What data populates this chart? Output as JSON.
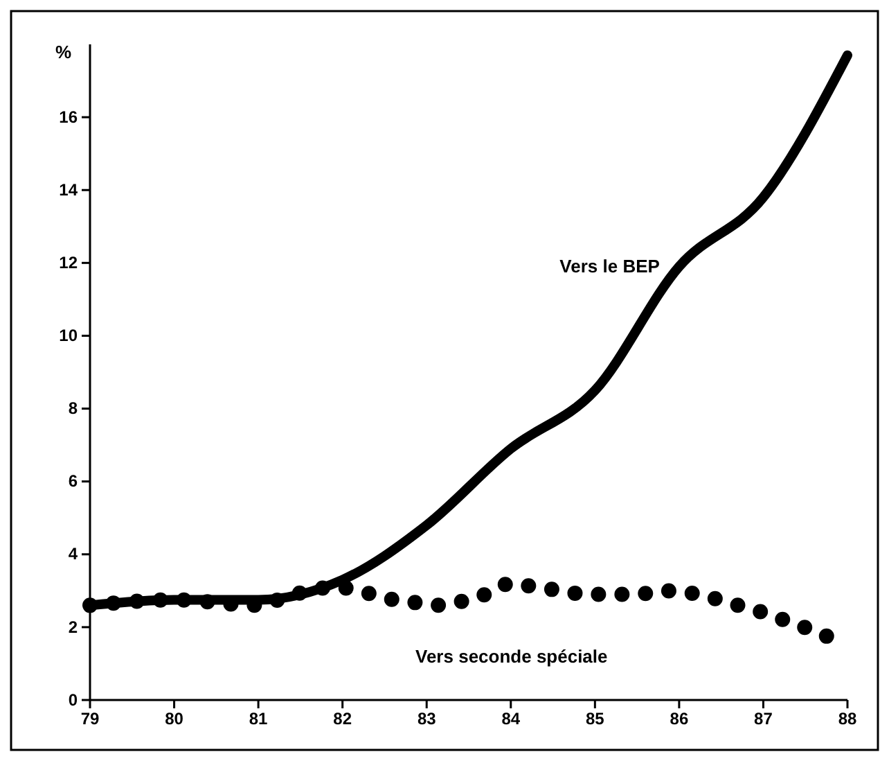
{
  "chart_data": {
    "type": "line",
    "ylabel": "%",
    "xlim": [
      79,
      88
    ],
    "xticks": [
      79,
      80,
      81,
      82,
      83,
      84,
      85,
      86,
      87,
      88
    ],
    "ylim": [
      0,
      18
    ],
    "yticks": [
      0,
      2,
      4,
      6,
      8,
      10,
      12,
      14,
      16
    ],
    "grid": false,
    "series": [
      {
        "name": "Vers seconde spéciale",
        "color": "#000000",
        "line_style": "dotted",
        "x": [
          79,
          80,
          81,
          81.3,
          81.6,
          81.9,
          82.2,
          82.5,
          82.8,
          83.1,
          83.4,
          83.7,
          84,
          84.3,
          84.6,
          84.9,
          85.2,
          85.5,
          85.8,
          86.1,
          86.4,
          86.7,
          87,
          87.3,
          87.6,
          87.9
        ],
        "values": [
          2.6,
          2.75,
          2.6,
          2.8,
          3.0,
          3.1,
          3.0,
          2.8,
          2.7,
          2.6,
          2.7,
          2.9,
          3.2,
          3.1,
          3.0,
          2.9,
          2.9,
          2.9,
          3.0,
          2.95,
          2.8,
          2.6,
          2.4,
          2.15,
          1.9,
          1.6
        ]
      },
      {
        "name": "Vers le BEP",
        "color": "#000000",
        "line_style": "solid",
        "x": [
          79,
          80,
          81,
          82,
          83,
          84,
          85,
          86,
          87,
          88
        ],
        "values": [
          2.6,
          2.75,
          2.75,
          3.3,
          4.8,
          6.9,
          8.5,
          11.9,
          13.8,
          17.7
        ]
      }
    ]
  }
}
